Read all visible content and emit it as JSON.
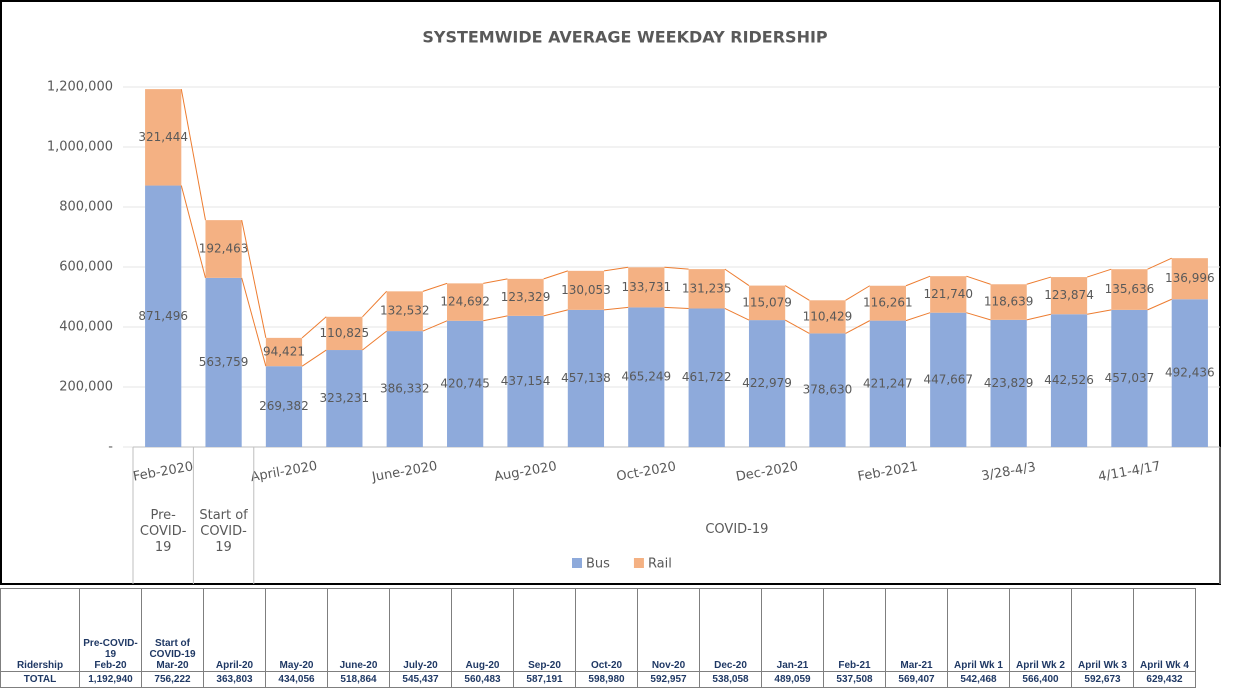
{
  "chart_data": {
    "type": "stacked_bar",
    "title": "SYSTEMWIDE AVERAGE WEEKDAY RIDERSHIP",
    "categories": [
      "Feb-2020",
      null,
      "April-2020",
      null,
      "June-2020",
      null,
      "Aug-2020",
      null,
      "Oct-2020",
      null,
      "Dec-2020",
      null,
      "Feb-2021",
      null,
      "3/28-4/3",
      null,
      "4/11-4/17",
      null
    ],
    "groups": [
      {
        "label": "Pre-COVID-19",
        "span": [
          0,
          0
        ]
      },
      {
        "label": "Start of COVID-19",
        "span": [
          1,
          1
        ]
      },
      {
        "label": "COVID-19",
        "span": [
          2,
          17
        ]
      }
    ],
    "series": [
      {
        "name": "Bus",
        "color": "#8eaadb",
        "values": [
          871496,
          563759,
          269382,
          323231,
          386332,
          420745,
          437154,
          457138,
          465249,
          461722,
          422979,
          378630,
          421247,
          447667,
          423829,
          442526,
          457037,
          492436
        ],
        "value_labels": [
          "871,496",
          "563,759",
          "269,382",
          "323,231",
          "386,332",
          "420,745",
          "437,154",
          "457,138",
          "465,249",
          "461,722",
          "422,979",
          "378,630",
          "421,247",
          "447,667",
          "423,829",
          "442,526",
          "457,037",
          "492,436"
        ]
      },
      {
        "name": "Rail",
        "color": "#f4b183",
        "values": [
          321444,
          192463,
          94421,
          110825,
          132532,
          124692,
          123329,
          130053,
          133731,
          131235,
          115079,
          110429,
          116261,
          121740,
          118639,
          123874,
          135636,
          136996
        ],
        "value_labels": [
          "321,444",
          "192,463",
          "94,421",
          "110,825",
          "132,532",
          "124,692",
          "123,329",
          "130,053",
          "133,731",
          "131,235",
          "115,079",
          "110,429",
          "116,261",
          "121,740",
          "118,639",
          "123,874",
          "135,636",
          "136,996"
        ]
      }
    ],
    "ylim": [
      0,
      1200000
    ],
    "yticks": [
      {
        "value": 0,
        "label": "-"
      },
      {
        "value": 200000,
        "label": "200,000"
      },
      {
        "value": 400000,
        "label": "400,000"
      },
      {
        "value": 600000,
        "label": "600,000"
      },
      {
        "value": 800000,
        "label": "800,000"
      },
      {
        "value": 1000000,
        "label": "1,000,000"
      },
      {
        "value": 1200000,
        "label": "1,200,000"
      }
    ],
    "grid": true,
    "series_lines": true,
    "legend": "bottom"
  },
  "table": {
    "header": [
      {
        "label": "Ridership"
      },
      {
        "note": "Pre-COVID-19",
        "label": "Feb-20"
      },
      {
        "note": "Start of COVID-19",
        "label": "Mar-20"
      },
      {
        "label": "April-20"
      },
      {
        "label": "May-20"
      },
      {
        "label": "June-20"
      },
      {
        "label": "July-20"
      },
      {
        "label": "Aug-20"
      },
      {
        "label": "Sep-20"
      },
      {
        "label": "Oct-20"
      },
      {
        "label": "Nov-20"
      },
      {
        "label": "Dec-20"
      },
      {
        "label": "Jan-21"
      },
      {
        "label": "Feb-21"
      },
      {
        "label": "Mar-21"
      },
      {
        "label": "April Wk 1"
      },
      {
        "label": "April Wk 2"
      },
      {
        "label": "April Wk 3"
      },
      {
        "label": "April Wk 4"
      }
    ],
    "rows": [
      [
        "TOTAL",
        "1,192,940",
        "756,222",
        "363,803",
        "434,056",
        "518,864",
        "545,437",
        "560,483",
        "587,191",
        "598,980",
        "592,957",
        "538,058",
        "489,059",
        "537,508",
        "569,407",
        "542,468",
        "566,400",
        "592,673",
        "629,432"
      ]
    ]
  }
}
